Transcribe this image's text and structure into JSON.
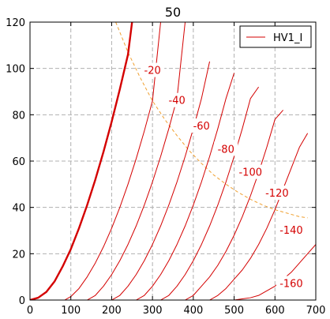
{
  "chart_data": {
    "type": "line",
    "title": "50",
    "xlabel": "",
    "ylabel": "",
    "xlim": [
      0,
      700
    ],
    "ylim": [
      0,
      120
    ],
    "x_ticks": [
      0,
      100,
      200,
      300,
      400,
      500,
      600,
      700
    ],
    "y_ticks": [
      0,
      20,
      40,
      60,
      80,
      100,
      120
    ],
    "grid": true,
    "legend_position": "top-right",
    "legend": [
      {
        "label": "HV1_I",
        "color": "#d40000"
      }
    ],
    "colors": {
      "curve": "#d40000",
      "bold_curve": "#d40000",
      "load_line": "#f0a030",
      "grid": "#b0b0b0",
      "axis": "#000000"
    },
    "series": [
      {
        "grid_voltage": "0",
        "bold": true,
        "x": [
          0,
          20,
          40,
          60,
          80,
          100,
          120,
          140,
          160,
          180,
          200,
          220,
          240,
          250
        ],
        "y": [
          0,
          1,
          3.5,
          8,
          14.5,
          22,
          31,
          41,
          52,
          64,
          77,
          91,
          106,
          120
        ]
      },
      {
        "grid_voltage": "-20",
        "bold": false,
        "x": [
          85,
          100,
          120,
          140,
          160,
          180,
          200,
          220,
          240,
          260,
          280,
          300,
          320
        ],
        "y": [
          0,
          1.5,
          5,
          10,
          16,
          23,
          31,
          40,
          50,
          61,
          73,
          86,
          120
        ]
      },
      {
        "grid_voltage": "-40",
        "bold": false,
        "x": [
          140,
          160,
          180,
          200,
          220,
          240,
          260,
          280,
          300,
          320,
          340,
          360,
          380
        ],
        "y": [
          0,
          2,
          6,
          11,
          17,
          24,
          32,
          41,
          51,
          62,
          74,
          87,
          120
        ]
      },
      {
        "grid_voltage": "-60",
        "bold": false,
        "x": [
          200,
          220,
          240,
          260,
          280,
          300,
          320,
          340,
          360,
          380,
          400,
          420,
          440
        ],
        "y": [
          0,
          2,
          6,
          11,
          17,
          24,
          32,
          41,
          51,
          62,
          74,
          87,
          103
        ]
      },
      {
        "grid_voltage": "-80",
        "bold": false,
        "x": [
          260,
          280,
          300,
          320,
          340,
          360,
          380,
          400,
          420,
          440,
          460,
          480,
          500
        ],
        "y": [
          0,
          2,
          6,
          11,
          17,
          24,
          32,
          41,
          51,
          62,
          74,
          87,
          98
        ]
      },
      {
        "grid_voltage": "-100",
        "bold": false,
        "x": [
          320,
          340,
          360,
          380,
          400,
          420,
          440,
          460,
          480,
          500,
          520,
          540,
          560
        ],
        "y": [
          0,
          2,
          6,
          11,
          17,
          24,
          32,
          41,
          51,
          62,
          74,
          87,
          92
        ]
      },
      {
        "grid_voltage": "-120",
        "bold": false,
        "x": [
          380,
          400,
          420,
          440,
          460,
          480,
          500,
          520,
          540,
          560,
          580,
          600,
          620
        ],
        "y": [
          0,
          2,
          6,
          10,
          15,
          21,
          28,
          36,
          45,
          55,
          66,
          78,
          82
        ]
      },
      {
        "grid_voltage": "-140",
        "bold": false,
        "x": [
          440,
          460,
          480,
          500,
          520,
          540,
          560,
          580,
          600,
          620,
          640,
          660,
          680
        ],
        "y": [
          0,
          2,
          5,
          9,
          13,
          18,
          24,
          31,
          39,
          48,
          57,
          66,
          72
        ]
      },
      {
        "grid_voltage": "-160",
        "bold": false,
        "x": [
          500,
          520,
          540,
          560,
          580,
          600,
          620,
          640,
          660,
          680,
          700
        ],
        "y": [
          0,
          0.5,
          1,
          2,
          4,
          6,
          9,
          12,
          16,
          20,
          24
        ]
      }
    ],
    "load_line": {
      "x": [
        210,
        240,
        270,
        300,
        330,
        360,
        390,
        420,
        450,
        480,
        510,
        540,
        570,
        600,
        630,
        660,
        680
      ],
      "y": [
        120,
        107,
        96,
        86,
        78,
        71,
        64.5,
        59,
        54,
        50,
        46.5,
        43.5,
        41,
        39,
        37.5,
        36,
        35.5
      ]
    },
    "annotations": [
      {
        "text": "-20",
        "x": 300,
        "y": 99
      },
      {
        "text": "-40",
        "x": 360,
        "y": 86
      },
      {
        "text": "-60",
        "x": 420,
        "y": 75
      },
      {
        "text": "-80",
        "x": 480,
        "y": 65
      },
      {
        "text": "-100",
        "x": 540,
        "y": 55
      },
      {
        "text": "-120",
        "x": 605,
        "y": 46
      },
      {
        "text": "-140",
        "x": 640,
        "y": 30
      },
      {
        "text": "-160",
        "x": 640,
        "y": 7
      }
    ]
  }
}
